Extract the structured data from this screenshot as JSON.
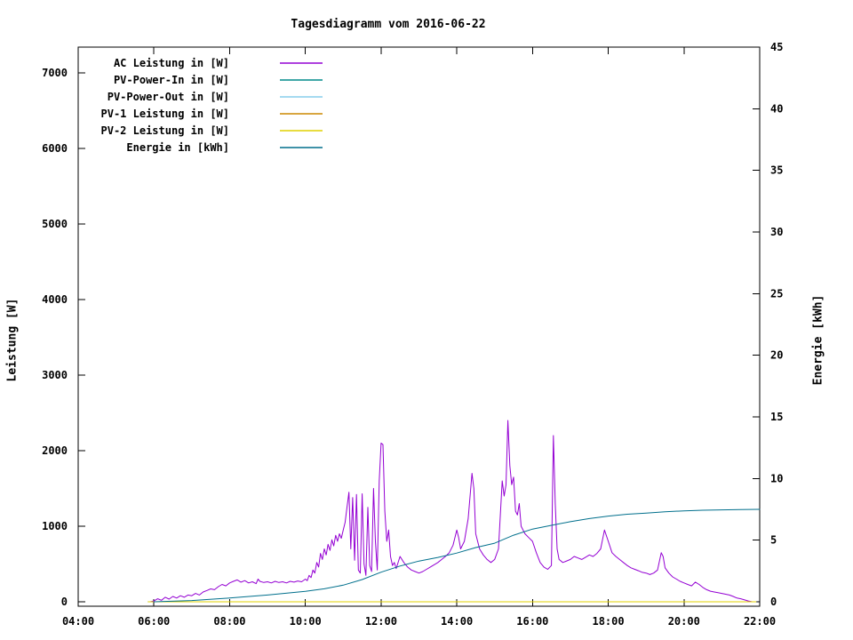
{
  "title": "Tagesdiagramm vom 2016-06-22",
  "chart_data": {
    "type": "line",
    "title": "Tagesdiagramm vom 2016-06-22",
    "grid": false,
    "legend_position": "top-left",
    "x_axis": {
      "label": "",
      "min_hour": 4,
      "max_hour": 22,
      "tick_interval_hours": 2,
      "tick_labels": [
        "04:00",
        "06:00",
        "08:00",
        "10:00",
        "12:00",
        "14:00",
        "16:00",
        "18:00",
        "20:00",
        "22:00"
      ]
    },
    "y_left": {
      "label": "Leistung [W]",
      "min": 0,
      "max": 7000,
      "tick_step": 1000,
      "tick_labels": [
        "0",
        "1000",
        "2000",
        "3000",
        "4000",
        "5000",
        "6000",
        "7000"
      ]
    },
    "y_right": {
      "label": "Energie [kWh]",
      "min": 0,
      "max": 45,
      "tick_step": 5,
      "tick_labels": [
        "0",
        "5",
        "10",
        "15",
        "20",
        "25",
        "30",
        "35",
        "40",
        "45"
      ]
    },
    "series": [
      {
        "name": "AC Leistung in [W]",
        "color": "#9400d3",
        "axis": "left",
        "points": [
          [
            5.9,
            0
          ],
          [
            6.0,
            10
          ],
          [
            6.1,
            40
          ],
          [
            6.2,
            20
          ],
          [
            6.3,
            60
          ],
          [
            6.4,
            35
          ],
          [
            6.5,
            70
          ],
          [
            6.6,
            50
          ],
          [
            6.7,
            80
          ],
          [
            6.8,
            60
          ],
          [
            6.9,
            90
          ],
          [
            7.0,
            80
          ],
          [
            7.1,
            110
          ],
          [
            7.2,
            90
          ],
          [
            7.3,
            130
          ],
          [
            7.4,
            150
          ],
          [
            7.5,
            170
          ],
          [
            7.6,
            160
          ],
          [
            7.7,
            200
          ],
          [
            7.8,
            230
          ],
          [
            7.9,
            210
          ],
          [
            8.0,
            250
          ],
          [
            8.1,
            270
          ],
          [
            8.2,
            290
          ],
          [
            8.3,
            260
          ],
          [
            8.4,
            280
          ],
          [
            8.5,
            250
          ],
          [
            8.6,
            265
          ],
          [
            8.7,
            240
          ],
          [
            8.75,
            300
          ],
          [
            8.8,
            270
          ],
          [
            8.9,
            255
          ],
          [
            9.0,
            265
          ],
          [
            9.1,
            250
          ],
          [
            9.2,
            270
          ],
          [
            9.3,
            255
          ],
          [
            9.4,
            265
          ],
          [
            9.5,
            250
          ],
          [
            9.6,
            270
          ],
          [
            9.7,
            260
          ],
          [
            9.8,
            275
          ],
          [
            9.9,
            265
          ],
          [
            10.0,
            300
          ],
          [
            10.05,
            280
          ],
          [
            10.1,
            350
          ],
          [
            10.15,
            320
          ],
          [
            10.2,
            420
          ],
          [
            10.25,
            380
          ],
          [
            10.3,
            520
          ],
          [
            10.35,
            460
          ],
          [
            10.4,
            640
          ],
          [
            10.45,
            560
          ],
          [
            10.5,
            700
          ],
          [
            10.55,
            620
          ],
          [
            10.6,
            760
          ],
          [
            10.65,
            680
          ],
          [
            10.7,
            820
          ],
          [
            10.75,
            740
          ],
          [
            10.8,
            880
          ],
          [
            10.85,
            800
          ],
          [
            10.9,
            900
          ],
          [
            10.95,
            840
          ],
          [
            11.0,
            950
          ],
          [
            11.05,
            1050
          ],
          [
            11.1,
            1250
          ],
          [
            11.15,
            1450
          ],
          [
            11.2,
            700
          ],
          [
            11.25,
            1380
          ],
          [
            11.3,
            550
          ],
          [
            11.35,
            1420
          ],
          [
            11.4,
            420
          ],
          [
            11.45,
            380
          ],
          [
            11.5,
            1430
          ],
          [
            11.55,
            500
          ],
          [
            11.6,
            350
          ],
          [
            11.65,
            1250
          ],
          [
            11.7,
            480
          ],
          [
            11.75,
            400
          ],
          [
            11.8,
            1500
          ],
          [
            11.85,
            800
          ],
          [
            11.9,
            420
          ],
          [
            11.95,
            1600
          ],
          [
            12.0,
            2100
          ],
          [
            12.05,
            2080
          ],
          [
            12.1,
            1200
          ],
          [
            12.15,
            800
          ],
          [
            12.2,
            950
          ],
          [
            12.25,
            600
          ],
          [
            12.3,
            480
          ],
          [
            12.35,
            520
          ],
          [
            12.4,
            440
          ],
          [
            12.5,
            600
          ],
          [
            12.6,
            520
          ],
          [
            12.7,
            460
          ],
          [
            12.8,
            420
          ],
          [
            12.9,
            400
          ],
          [
            13.0,
            380
          ],
          [
            13.1,
            400
          ],
          [
            13.2,
            430
          ],
          [
            13.3,
            460
          ],
          [
            13.4,
            490
          ],
          [
            13.5,
            520
          ],
          [
            13.6,
            560
          ],
          [
            13.7,
            600
          ],
          [
            13.8,
            650
          ],
          [
            13.9,
            750
          ],
          [
            14.0,
            950
          ],
          [
            14.05,
            850
          ],
          [
            14.1,
            700
          ],
          [
            14.2,
            800
          ],
          [
            14.3,
            1100
          ],
          [
            14.4,
            1700
          ],
          [
            14.45,
            1500
          ],
          [
            14.5,
            900
          ],
          [
            14.6,
            700
          ],
          [
            14.7,
            620
          ],
          [
            14.8,
            560
          ],
          [
            14.9,
            520
          ],
          [
            15.0,
            560
          ],
          [
            15.1,
            700
          ],
          [
            15.2,
            1600
          ],
          [
            15.25,
            1400
          ],
          [
            15.3,
            1550
          ],
          [
            15.35,
            2400
          ],
          [
            15.4,
            1800
          ],
          [
            15.45,
            1550
          ],
          [
            15.5,
            1650
          ],
          [
            15.55,
            1200
          ],
          [
            15.6,
            1150
          ],
          [
            15.65,
            1300
          ],
          [
            15.7,
            1000
          ],
          [
            15.8,
            900
          ],
          [
            15.9,
            850
          ],
          [
            16.0,
            800
          ],
          [
            16.1,
            650
          ],
          [
            16.2,
            520
          ],
          [
            16.3,
            460
          ],
          [
            16.4,
            430
          ],
          [
            16.5,
            480
          ],
          [
            16.55,
            2200
          ],
          [
            16.6,
            1300
          ],
          [
            16.65,
            700
          ],
          [
            16.7,
            560
          ],
          [
            16.8,
            520
          ],
          [
            16.9,
            540
          ],
          [
            17.0,
            560
          ],
          [
            17.1,
            600
          ],
          [
            17.2,
            580
          ],
          [
            17.3,
            560
          ],
          [
            17.4,
            590
          ],
          [
            17.5,
            620
          ],
          [
            17.6,
            600
          ],
          [
            17.7,
            640
          ],
          [
            17.8,
            700
          ],
          [
            17.9,
            950
          ],
          [
            18.0,
            800
          ],
          [
            18.1,
            650
          ],
          [
            18.2,
            600
          ],
          [
            18.3,
            560
          ],
          [
            18.4,
            520
          ],
          [
            18.5,
            480
          ],
          [
            18.6,
            450
          ],
          [
            18.7,
            430
          ],
          [
            18.8,
            410
          ],
          [
            18.9,
            390
          ],
          [
            19.0,
            380
          ],
          [
            19.1,
            360
          ],
          [
            19.2,
            380
          ],
          [
            19.3,
            420
          ],
          [
            19.4,
            650
          ],
          [
            19.45,
            600
          ],
          [
            19.5,
            450
          ],
          [
            19.6,
            380
          ],
          [
            19.7,
            330
          ],
          [
            19.8,
            300
          ],
          [
            19.9,
            270
          ],
          [
            20.0,
            250
          ],
          [
            20.1,
            230
          ],
          [
            20.2,
            210
          ],
          [
            20.3,
            260
          ],
          [
            20.4,
            230
          ],
          [
            20.5,
            190
          ],
          [
            20.6,
            160
          ],
          [
            20.7,
            140
          ],
          [
            20.8,
            130
          ],
          [
            20.9,
            120
          ],
          [
            21.0,
            110
          ],
          [
            21.1,
            100
          ],
          [
            21.2,
            90
          ],
          [
            21.3,
            70
          ],
          [
            21.4,
            50
          ],
          [
            21.5,
            40
          ],
          [
            21.6,
            25
          ],
          [
            21.7,
            10
          ],
          [
            21.8,
            0
          ]
        ]
      },
      {
        "name": "PV-Power-In in [W]",
        "color": "#008b8b",
        "axis": "left",
        "points": [
          [
            5.85,
            0
          ],
          [
            21.9,
            0
          ]
        ]
      },
      {
        "name": "PV-Power-Out in [W]",
        "color": "#87ceeb",
        "axis": "left",
        "points": [
          [
            5.85,
            0
          ],
          [
            21.9,
            0
          ]
        ]
      },
      {
        "name": "PV-1 Leistung in [W]",
        "color": "#cc8800",
        "axis": "left",
        "points": [
          [
            5.85,
            0
          ],
          [
            21.9,
            0
          ]
        ]
      },
      {
        "name": "PV-2 Leistung in [W]",
        "color": "#e0d000",
        "axis": "left",
        "points": [
          [
            5.85,
            0
          ],
          [
            21.9,
            0
          ]
        ]
      },
      {
        "name": "Energie in [kWh]",
        "color": "#006f8c",
        "axis": "right",
        "points": [
          [
            6.0,
            0
          ],
          [
            7.0,
            0.1
          ],
          [
            8.0,
            0.3
          ],
          [
            9.0,
            0.55
          ],
          [
            10.0,
            0.85
          ],
          [
            10.5,
            1.05
          ],
          [
            11.0,
            1.35
          ],
          [
            11.5,
            1.8
          ],
          [
            12.0,
            2.4
          ],
          [
            12.5,
            2.9
          ],
          [
            13.0,
            3.3
          ],
          [
            13.5,
            3.6
          ],
          [
            14.0,
            3.95
          ],
          [
            14.5,
            4.4
          ],
          [
            15.0,
            4.75
          ],
          [
            15.5,
            5.4
          ],
          [
            16.0,
            5.9
          ],
          [
            16.5,
            6.2
          ],
          [
            17.0,
            6.5
          ],
          [
            17.5,
            6.75
          ],
          [
            18.0,
            6.95
          ],
          [
            18.5,
            7.1
          ],
          [
            19.0,
            7.2
          ],
          [
            19.5,
            7.3
          ],
          [
            20.0,
            7.38
          ],
          [
            20.5,
            7.43
          ],
          [
            21.0,
            7.46
          ],
          [
            21.5,
            7.48
          ],
          [
            22.0,
            7.5
          ]
        ]
      }
    ]
  }
}
